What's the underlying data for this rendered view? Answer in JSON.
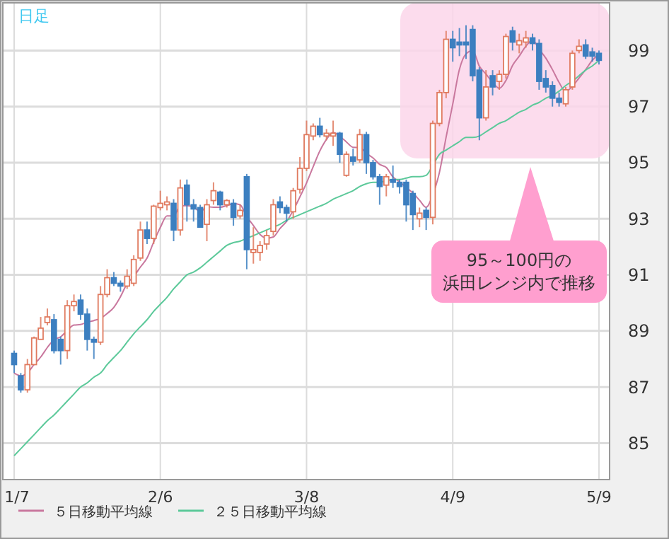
{
  "chart_data": {
    "type": "candlestick",
    "title": "日足",
    "categories": [
      "1/7",
      null,
      null,
      null,
      null,
      null,
      null,
      null,
      null,
      null,
      null,
      null,
      null,
      null,
      null,
      null,
      null,
      null,
      null,
      null,
      null,
      null,
      "2/6",
      null,
      null,
      null,
      null,
      null,
      null,
      null,
      null,
      null,
      null,
      null,
      null,
      null,
      null,
      null,
      null,
      null,
      null,
      null,
      null,
      null,
      "3/8",
      null,
      null,
      null,
      null,
      null,
      null,
      null,
      null,
      null,
      null,
      null,
      null,
      null,
      null,
      null,
      null,
      null,
      null,
      null,
      null,
      null,
      "4/9",
      null,
      null,
      null,
      null,
      null,
      null,
      null,
      null,
      null,
      null,
      null,
      null,
      null,
      null,
      null,
      null,
      null,
      null,
      null,
      null,
      null,
      "5/9"
    ],
    "ohlc": [
      [
        88.2,
        88.3,
        87.5,
        87.8
      ],
      [
        87.4,
        87.5,
        86.8,
        86.9
      ],
      [
        86.9,
        88.0,
        86.8,
        87.8
      ],
      [
        87.8,
        88.8,
        87.8,
        88.75
      ],
      [
        88.7,
        89.5,
        88.7,
        89.1
      ],
      [
        89.3,
        89.8,
        89.2,
        89.5
      ],
      [
        89.4,
        89.6,
        88.2,
        88.3
      ],
      [
        88.7,
        88.8,
        87.8,
        88.3
      ],
      [
        88.3,
        90.1,
        88.0,
        89.9
      ],
      [
        89.9,
        90.3,
        89.7,
        90.05
      ],
      [
        90.1,
        90.3,
        89.4,
        89.6
      ],
      [
        89.6,
        89.8,
        88.3,
        88.7
      ],
      [
        88.7,
        88.8,
        88.0,
        88.6
      ],
      [
        88.6,
        90.6,
        88.5,
        90.3
      ],
      [
        90.3,
        91.2,
        90.2,
        90.9
      ],
      [
        90.9,
        91.1,
        90.6,
        90.7
      ],
      [
        90.7,
        90.8,
        90.4,
        90.6
      ],
      [
        90.6,
        91.2,
        90.5,
        90.95
      ],
      [
        90.7,
        91.7,
        90.6,
        91.55
      ],
      [
        91.6,
        92.9,
        91.5,
        92.6
      ],
      [
        92.6,
        92.9,
        92.1,
        92.3
      ],
      [
        92.3,
        93.5,
        92.1,
        93.45
      ],
      [
        93.4,
        94.0,
        93.3,
        93.55
      ],
      [
        93.5,
        93.8,
        93.3,
        93.6
      ],
      [
        93.55,
        93.7,
        92.2,
        92.6
      ],
      [
        92.6,
        94.4,
        92.4,
        94.1
      ],
      [
        94.2,
        94.4,
        92.9,
        93.5
      ],
      [
        93.5,
        93.7,
        92.9,
        93.35
      ],
      [
        93.4,
        93.5,
        92.7,
        92.7
      ],
      [
        92.8,
        93.7,
        92.2,
        93.5
      ],
      [
        93.65,
        94.3,
        93.5,
        94.0
      ],
      [
        93.95,
        94.0,
        93.3,
        93.5
      ],
      [
        93.5,
        93.7,
        93.4,
        93.65
      ],
      [
        93.55,
        93.7,
        92.75,
        93.05
      ],
      [
        93.1,
        93.5,
        93.0,
        93.3
      ],
      [
        94.5,
        94.6,
        91.2,
        91.9
      ],
      [
        91.8,
        92.7,
        91.4,
        91.9
      ],
      [
        91.8,
        92.2,
        91.5,
        92.05
      ],
      [
        92.1,
        92.6,
        91.9,
        92.4
      ],
      [
        92.55,
        93.7,
        92.4,
        93.5
      ],
      [
        93.6,
        93.8,
        93.2,
        93.4
      ],
      [
        93.4,
        93.5,
        92.9,
        93.2
      ],
      [
        93.25,
        94.1,
        93.0,
        94.0
      ],
      [
        94.05,
        95.2,
        93.9,
        94.8
      ],
      [
        94.8,
        96.5,
        94.7,
        96.0
      ],
      [
        95.95,
        96.4,
        95.8,
        96.3
      ],
      [
        96.3,
        96.6,
        95.9,
        96.0
      ],
      [
        95.95,
        96.2,
        95.8,
        96.05
      ],
      [
        95.95,
        96.5,
        95.6,
        96.05
      ],
      [
        96.05,
        96.1,
        95.0,
        95.3
      ],
      [
        94.55,
        95.4,
        94.5,
        95.3
      ],
      [
        95.2,
        95.5,
        94.9,
        95.05
      ],
      [
        95.1,
        96.2,
        95.0,
        96.0
      ],
      [
        96.0,
        96.1,
        94.6,
        95.0
      ],
      [
        95.0,
        95.1,
        94.4,
        94.5
      ],
      [
        94.5,
        94.6,
        93.5,
        94.15
      ],
      [
        94.2,
        94.6,
        93.8,
        94.5
      ],
      [
        94.4,
        94.9,
        94.1,
        94.3
      ],
      [
        94.3,
        94.4,
        93.9,
        94.15
      ],
      [
        94.3,
        94.4,
        92.9,
        93.5
      ],
      [
        93.9,
        94.0,
        92.6,
        93.15
      ],
      [
        93.0,
        93.4,
        92.7,
        93.2
      ],
      [
        93.3,
        93.4,
        92.6,
        93.05
      ],
      [
        93.05,
        96.5,
        92.8,
        96.4
      ],
      [
        96.4,
        97.6,
        96.3,
        97.5
      ],
      [
        97.5,
        99.7,
        97.3,
        99.4
      ],
      [
        99.4,
        99.7,
        98.6,
        99.1
      ],
      [
        99.3,
        99.8,
        98.8,
        99.2
      ],
      [
        99.3,
        99.9,
        98.7,
        99.2
      ],
      [
        99.75,
        99.9,
        97.9,
        98.1
      ],
      [
        98.3,
        98.4,
        95.8,
        96.6
      ],
      [
        96.6,
        98.3,
        96.5,
        97.7
      ],
      [
        98.1,
        98.3,
        97.4,
        97.7
      ],
      [
        97.9,
        98.3,
        97.6,
        98.15
      ],
      [
        98.15,
        99.6,
        98.0,
        99.5
      ],
      [
        99.7,
        99.85,
        99.0,
        99.3
      ],
      [
        99.2,
        99.6,
        98.9,
        99.35
      ],
      [
        99.3,
        99.7,
        99.1,
        99.45
      ],
      [
        99.45,
        99.6,
        99.0,
        99.25
      ],
      [
        99.25,
        99.4,
        97.6,
        97.9
      ],
      [
        98.0,
        98.3,
        97.5,
        97.7
      ],
      [
        97.75,
        97.9,
        97.0,
        97.3
      ],
      [
        97.3,
        97.5,
        97.0,
        97.15
      ],
      [
        97.1,
        97.7,
        97.0,
        97.6
      ],
      [
        97.7,
        99.0,
        97.6,
        98.9
      ],
      [
        99.0,
        99.4,
        98.9,
        99.15
      ],
      [
        99.2,
        99.4,
        98.7,
        98.8
      ],
      [
        98.95,
        99.1,
        98.6,
        98.8
      ],
      [
        98.9,
        99.0,
        98.5,
        98.65
      ]
    ],
    "colors": [
      "#3c7fc0",
      "#3c7fc0",
      "#e07a5f",
      "#e07a5f",
      "#e07a5f",
      "#e07a5f",
      "#3c7fc0",
      "#3c7fc0",
      "#e07a5f",
      "#e07a5f",
      "#3c7fc0",
      "#3c7fc0",
      "#3c7fc0",
      "#e07a5f",
      "#e07a5f",
      "#3c7fc0",
      "#3c7fc0",
      "#e07a5f",
      "#e07a5f",
      "#e07a5f",
      "#3c7fc0",
      "#e07a5f",
      "#e07a5f",
      "#e07a5f",
      "#3c7fc0",
      "#e07a5f",
      "#3c7fc0",
      "#3c7fc0",
      "#3c7fc0",
      "#e07a5f",
      "#e07a5f",
      "#3c7fc0",
      "#e07a5f",
      "#3c7fc0",
      "#e07a5f",
      "#3c7fc0",
      "#e07a5f",
      "#e07a5f",
      "#e07a5f",
      "#e07a5f",
      "#3c7fc0",
      "#3c7fc0",
      "#e07a5f",
      "#e07a5f",
      "#e07a5f",
      "#e07a5f",
      "#3c7fc0",
      "#e07a5f",
      "#e07a5f",
      "#3c7fc0",
      "#e07a5f",
      "#3c7fc0",
      "#e07a5f",
      "#3c7fc0",
      "#3c7fc0",
      "#3c7fc0",
      "#e07a5f",
      "#3c7fc0",
      "#3c7fc0",
      "#3c7fc0",
      "#3c7fc0",
      "#e07a5f",
      "#3c7fc0",
      "#e07a5f",
      "#e07a5f",
      "#e07a5f",
      "#3c7fc0",
      "#3c7fc0",
      "#3c7fc0",
      "#3c7fc0",
      "#3c7fc0",
      "#e07a5f",
      "#3c7fc0",
      "#e07a5f",
      "#e07a5f",
      "#3c7fc0",
      "#e07a5f",
      "#e07a5f",
      "#3c7fc0",
      "#3c7fc0",
      "#3c7fc0",
      "#3c7fc0",
      "#3c7fc0",
      "#e07a5f",
      "#e07a5f",
      "#e07a5f",
      "#3c7fc0",
      "#3c7fc0",
      "#3c7fc0"
    ],
    "series": [
      {
        "type": "line",
        "name": "５日移動平均線",
        "color": "#c9789e",
        "values": [
          87.5,
          87.4,
          87.5,
          87.8,
          88.07,
          88.41,
          88.69,
          88.79,
          89.02,
          89.21,
          89.23,
          89.31,
          89.37,
          89.45,
          89.62,
          89.84,
          90.22,
          90.69,
          90.94,
          91.28,
          91.6,
          92.17,
          92.69,
          93.1,
          93.1,
          93.46,
          93.47,
          93.43,
          93.25,
          93.43,
          93.41,
          93.41,
          93.47,
          93.54,
          93.5,
          93.08,
          92.76,
          92.44,
          92.31,
          92.35,
          92.65,
          92.91,
          93.3,
          93.78,
          94.28,
          94.86,
          95.42,
          95.83,
          96.08,
          95.94,
          95.74,
          95.55,
          95.54,
          95.33,
          95.17,
          94.94,
          94.83,
          94.49,
          94.32,
          94.12,
          93.92,
          93.66,
          93.41,
          93.86,
          94.66,
          95.91,
          97.09,
          98.32,
          98.88,
          99.0,
          98.44,
          98.16,
          97.86,
          97.65,
          97.93,
          98.47,
          98.8,
          99.15,
          99.37,
          99.05,
          98.73,
          98.32,
          97.86,
          97.53,
          97.73,
          98.02,
          98.32,
          98.65,
          98.86
        ]
      },
      {
        "type": "line",
        "name": "２５日移動平均線",
        "color": "#5cc99a",
        "values": [
          84.55,
          84.8,
          85.05,
          85.3,
          85.55,
          85.8,
          86.0,
          86.25,
          86.5,
          86.75,
          87.0,
          87.15,
          87.35,
          87.5,
          87.8,
          88.05,
          88.3,
          88.6,
          88.9,
          89.15,
          89.4,
          89.7,
          89.95,
          90.2,
          90.5,
          90.75,
          91.0,
          91.1,
          91.25,
          91.45,
          91.65,
          91.85,
          92.05,
          92.15,
          92.2,
          92.3,
          92.4,
          92.5,
          92.6,
          92.7,
          92.8,
          92.95,
          93.05,
          93.15,
          93.25,
          93.35,
          93.45,
          93.55,
          93.7,
          93.8,
          93.9,
          94.0,
          94.15,
          94.25,
          94.3,
          94.3,
          94.35,
          94.4,
          94.4,
          94.45,
          94.5,
          94.5,
          94.55,
          94.9,
          95.3,
          95.45,
          95.6,
          95.75,
          95.9,
          95.9,
          95.95,
          96.1,
          96.25,
          96.4,
          96.5,
          96.65,
          96.8,
          96.9,
          97.05,
          97.15,
          97.3,
          97.4,
          97.55,
          97.75,
          97.9,
          98.1,
          98.3,
          98.45,
          98.65
        ]
      }
    ],
    "ylim": [
      83.7,
      100.7
    ],
    "yticks": [
      85,
      87,
      89,
      91,
      93,
      95,
      97,
      99
    ],
    "grid": true,
    "legend": "bottom",
    "annotations": [
      "95～100円の",
      "浜田レンジ内で推移"
    ]
  }
}
